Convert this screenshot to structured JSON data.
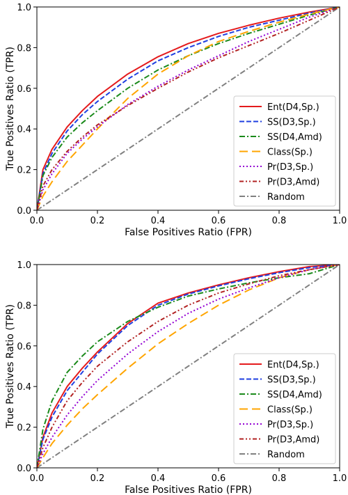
{
  "chart_data": [
    {
      "type": "line",
      "xlabel": "False Positives Ratio (FPR)",
      "ylabel": "True Positives Ratio (TPR)",
      "xlim": [
        0,
        1
      ],
      "ylim": [
        0,
        1
      ],
      "xticks": [
        "0.0",
        "0.2",
        "0.4",
        "0.6",
        "0.8",
        "1.0"
      ],
      "yticks": [
        "0.0",
        "0.2",
        "0.4",
        "0.6",
        "0.8",
        "1.0"
      ],
      "grid": false,
      "legend_position": "lower-right",
      "series": [
        {
          "name": "Ent(D4,Sp.)",
          "color": "#e41a1c",
          "dash": "solid",
          "x": [
            0,
            0.02,
            0.05,
            0.1,
            0.15,
            0.2,
            0.3,
            0.4,
            0.5,
            0.6,
            0.7,
            0.8,
            0.9,
            1.0
          ],
          "y": [
            0,
            0.2,
            0.3,
            0.41,
            0.49,
            0.56,
            0.67,
            0.755,
            0.82,
            0.87,
            0.91,
            0.945,
            0.975,
            1.0
          ]
        },
        {
          "name": "SS(D3,Sp.)",
          "color": "#1f3fe0",
          "dash": "dashed",
          "x": [
            0,
            0.02,
            0.05,
            0.1,
            0.15,
            0.2,
            0.3,
            0.4,
            0.5,
            0.6,
            0.7,
            0.8,
            0.9,
            1.0
          ],
          "y": [
            0,
            0.18,
            0.28,
            0.39,
            0.47,
            0.535,
            0.645,
            0.735,
            0.8,
            0.855,
            0.9,
            0.935,
            0.97,
            1.0
          ]
        },
        {
          "name": "SS(D4,Amd)",
          "color": "#1a8a1a",
          "dash": "dashdot",
          "x": [
            0,
            0.02,
            0.05,
            0.1,
            0.15,
            0.2,
            0.3,
            0.4,
            0.5,
            0.6,
            0.7,
            0.8,
            0.9,
            1.0
          ],
          "y": [
            0,
            0.17,
            0.26,
            0.36,
            0.43,
            0.49,
            0.6,
            0.69,
            0.76,
            0.82,
            0.87,
            0.915,
            0.96,
            1.0
          ]
        },
        {
          "name": "Class(Sp.)",
          "color": "#ffa500",
          "dash": "longdash",
          "x": [
            0,
            0.02,
            0.05,
            0.1,
            0.15,
            0.2,
            0.3,
            0.4,
            0.5,
            0.6,
            0.7,
            0.8,
            0.9,
            1.0
          ],
          "y": [
            0,
            0.07,
            0.14,
            0.24,
            0.32,
            0.4,
            0.55,
            0.67,
            0.76,
            0.83,
            0.88,
            0.925,
            0.965,
            1.0
          ]
        },
        {
          "name": "Pr(D3,Sp.)",
          "color": "#9400d3",
          "dash": "dotted",
          "x": [
            0,
            0.02,
            0.05,
            0.1,
            0.15,
            0.2,
            0.3,
            0.4,
            0.5,
            0.6,
            0.7,
            0.8,
            0.9,
            1.0
          ],
          "y": [
            0,
            0.1,
            0.18,
            0.28,
            0.35,
            0.41,
            0.52,
            0.61,
            0.69,
            0.76,
            0.83,
            0.89,
            0.95,
            1.0
          ]
        },
        {
          "name": "Pr(D3,Amd)",
          "color": "#b22222",
          "dash": "dashdotdot",
          "x": [
            0,
            0.02,
            0.05,
            0.1,
            0.15,
            0.2,
            0.3,
            0.4,
            0.5,
            0.6,
            0.7,
            0.8,
            0.9,
            1.0
          ],
          "y": [
            0,
            0.12,
            0.2,
            0.29,
            0.36,
            0.42,
            0.515,
            0.6,
            0.68,
            0.75,
            0.81,
            0.87,
            0.935,
            1.0
          ]
        },
        {
          "name": "Random",
          "color": "#808080",
          "dash": "dashdot",
          "x": [
            0,
            1
          ],
          "y": [
            0,
            1
          ]
        }
      ]
    },
    {
      "type": "line",
      "xlabel": "False Positives Ratio (FPR)",
      "ylabel": "True Positives Ratio (TPR)",
      "xlim": [
        0,
        1
      ],
      "ylim": [
        0,
        1
      ],
      "xticks": [
        "0.0",
        "0.2",
        "0.4",
        "0.6",
        "0.8",
        "1.0"
      ],
      "yticks": [
        "0.0",
        "0.2",
        "0.4",
        "0.6",
        "0.8",
        "1.0"
      ],
      "grid": false,
      "legend_position": "lower-right",
      "series": [
        {
          "name": "Ent(D4,Sp.)",
          "color": "#e41a1c",
          "dash": "solid",
          "x": [
            0,
            0.02,
            0.05,
            0.1,
            0.15,
            0.2,
            0.3,
            0.4,
            0.5,
            0.6,
            0.7,
            0.8,
            0.9,
            1.0
          ],
          "y": [
            0,
            0.15,
            0.27,
            0.4,
            0.49,
            0.57,
            0.71,
            0.81,
            0.86,
            0.9,
            0.935,
            0.965,
            0.99,
            1.0
          ]
        },
        {
          "name": "SS(D3,Sp.)",
          "color": "#1f3fe0",
          "dash": "dashed",
          "x": [
            0,
            0.02,
            0.05,
            0.1,
            0.15,
            0.2,
            0.3,
            0.4,
            0.5,
            0.6,
            0.7,
            0.8,
            0.9,
            1.0
          ],
          "y": [
            0,
            0.14,
            0.25,
            0.38,
            0.47,
            0.56,
            0.7,
            0.8,
            0.855,
            0.895,
            0.93,
            0.96,
            0.985,
            1.0
          ]
        },
        {
          "name": "SS(D4,Amd)",
          "color": "#1a8a1a",
          "dash": "dashdot",
          "x": [
            0,
            0.02,
            0.05,
            0.1,
            0.15,
            0.2,
            0.3,
            0.4,
            0.5,
            0.6,
            0.7,
            0.8,
            0.9,
            1.0
          ],
          "y": [
            0,
            0.19,
            0.33,
            0.47,
            0.55,
            0.62,
            0.72,
            0.79,
            0.845,
            0.88,
            0.91,
            0.935,
            0.955,
            1.0
          ]
        },
        {
          "name": "Class(Sp.)",
          "color": "#ffa500",
          "dash": "longdash",
          "x": [
            0,
            0.02,
            0.05,
            0.1,
            0.15,
            0.2,
            0.3,
            0.4,
            0.5,
            0.6,
            0.7,
            0.8,
            0.9,
            1.0
          ],
          "y": [
            0,
            0.05,
            0.12,
            0.21,
            0.29,
            0.36,
            0.49,
            0.61,
            0.71,
            0.8,
            0.875,
            0.935,
            0.975,
            1.0
          ]
        },
        {
          "name": "Pr(D3,Sp.)",
          "color": "#9400d3",
          "dash": "dotted",
          "x": [
            0,
            0.02,
            0.05,
            0.1,
            0.15,
            0.2,
            0.3,
            0.4,
            0.5,
            0.6,
            0.7,
            0.8,
            0.9,
            1.0
          ],
          "y": [
            0,
            0.07,
            0.15,
            0.26,
            0.35,
            0.43,
            0.56,
            0.67,
            0.76,
            0.83,
            0.885,
            0.935,
            0.975,
            1.0
          ]
        },
        {
          "name": "Pr(D3,Amd)",
          "color": "#b22222",
          "dash": "dashdotdot",
          "x": [
            0,
            0.02,
            0.05,
            0.1,
            0.15,
            0.2,
            0.3,
            0.4,
            0.5,
            0.6,
            0.7,
            0.8,
            0.9,
            1.0
          ],
          "y": [
            0,
            0.1,
            0.2,
            0.33,
            0.42,
            0.5,
            0.62,
            0.72,
            0.8,
            0.86,
            0.905,
            0.945,
            0.975,
            1.0
          ]
        },
        {
          "name": "Random",
          "color": "#808080",
          "dash": "dashdot",
          "x": [
            0,
            1
          ],
          "y": [
            0,
            1
          ]
        }
      ]
    }
  ]
}
